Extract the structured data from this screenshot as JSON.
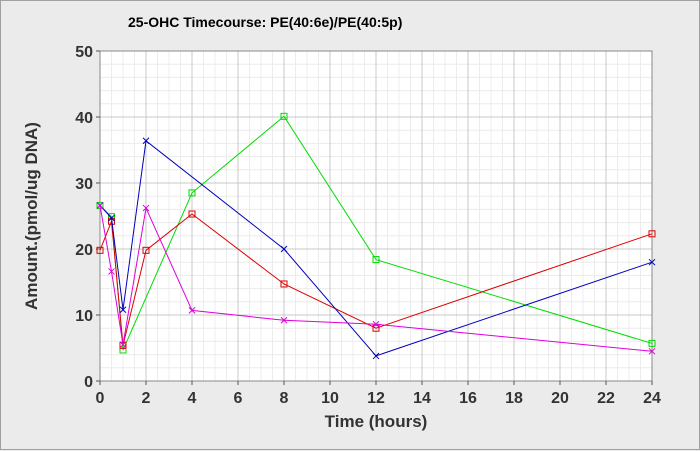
{
  "chart_data": {
    "type": "line",
    "title": "25-OHC Timecourse: PE(40:6e)/PE(40:5p)",
    "xlabel": "Time (hours)",
    "ylabel": "Amount.(pmol/ug DNA)",
    "xlim": [
      0,
      24
    ],
    "ylim": [
      0,
      50
    ],
    "xticks": [
      0,
      2,
      4,
      6,
      8,
      10,
      12,
      14,
      16,
      18,
      20,
      22,
      24
    ],
    "yticks": [
      0,
      10,
      20,
      30,
      40,
      50
    ],
    "grid": true,
    "legend": "none",
    "series": [
      {
        "color": "#00dd00",
        "marker": "square",
        "x": [
          0,
          0.5,
          1,
          4,
          8,
          12,
          24
        ],
        "y": [
          26.6,
          24.9,
          4.7,
          28.5,
          40.1,
          18.4,
          5.7
        ]
      },
      {
        "color": "#dd0000",
        "marker": "square",
        "x": [
          0,
          0.5,
          1,
          2,
          4,
          8,
          12,
          24
        ],
        "y": [
          19.8,
          24.2,
          5.4,
          19.8,
          25.3,
          14.7,
          8.0,
          22.3
        ]
      },
      {
        "color": "#0000bb",
        "marker": "x",
        "x": [
          0,
          0.5,
          1,
          2,
          8,
          12,
          24
        ],
        "y": [
          26.6,
          24.7,
          10.8,
          36.4,
          20.0,
          3.8,
          18.0
        ]
      },
      {
        "color": "#dd00dd",
        "marker": "x",
        "x": [
          0,
          0.5,
          1,
          2,
          4,
          8,
          12,
          24
        ],
        "y": [
          26.6,
          16.6,
          5.5,
          26.2,
          10.7,
          9.2,
          8.6,
          4.5
        ]
      }
    ]
  }
}
